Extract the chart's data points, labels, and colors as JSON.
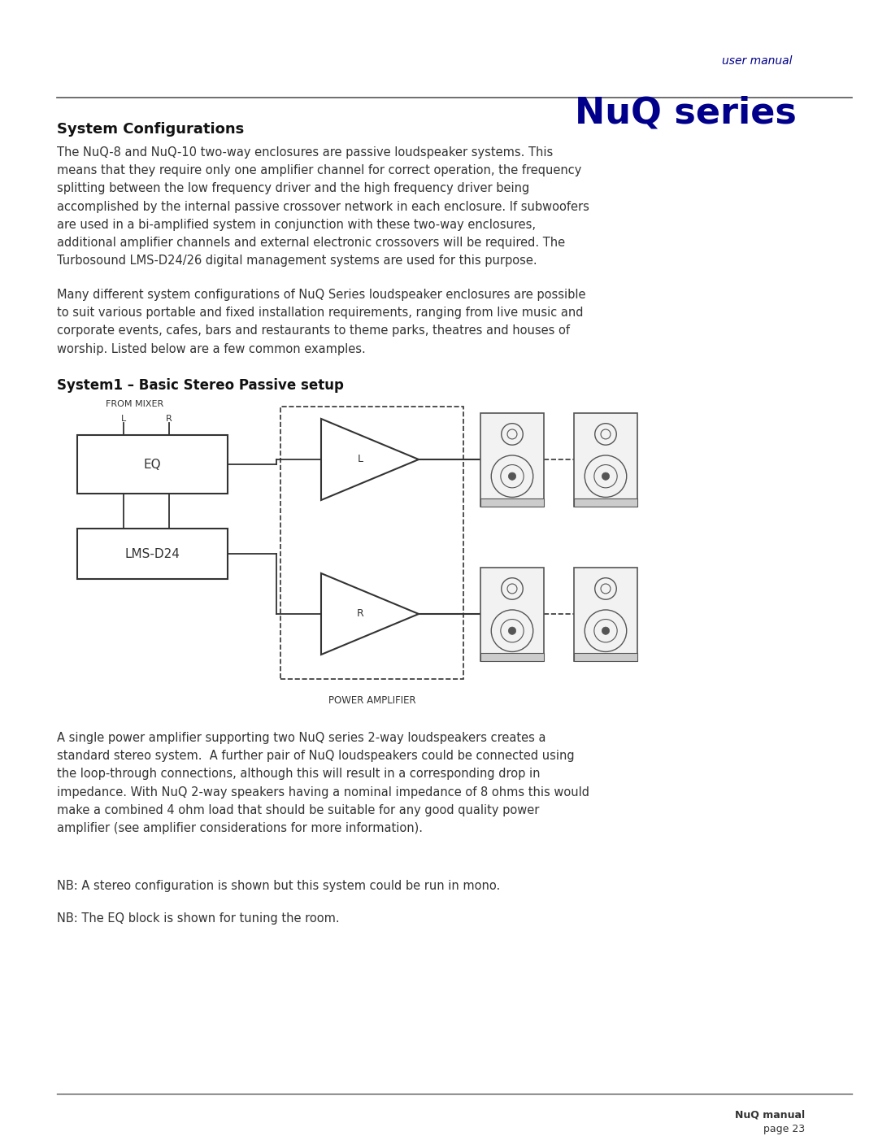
{
  "page_bg": "#ffffff",
  "brand_small": "user manual",
  "brand_large": "NuQ series",
  "brand_color": "#00008B",
  "section_title": "System Configurations",
  "para1": "The NuQ-8 and NuQ-10 two-way enclosures are passive loudspeaker systems. This\nmeans that they require only one amplifier channel for correct operation, the frequency\nsplitting between the low frequency driver and the high frequency driver being\naccomplished by the internal passive crossover network in each enclosure. If subwoofers\nare used in a bi-amplified system in conjunction with these two-way enclosures,\nadditional amplifier channels and external electronic crossovers will be required. The\nTurbosound LMS-D24/26 digital management systems are used for this purpose.",
  "para2": "Many different system configurations of NuQ Series loudspeaker enclosures are possible\nto suit various portable and fixed installation requirements, ranging from live music and\ncorporate events, cafes, bars and restaurants to theme parks, theatres and houses of\nworship. Listed below are a few common examples.",
  "subsection_title": "System1 – Basic Stereo Passive setup",
  "para3": "A single power amplifier supporting two NuQ series 2-way loudspeakers creates a\nstandard stereo system.  A further pair of NuQ loudspeakers could be connected using\nthe loop-through connections, although this will result in a corresponding drop in\nimpedance. With NuQ 2-way speakers having a nominal impedance of 8 ohms this would\nmake a combined 4 ohm load that should be suitable for any good quality power\namplifier (see amplifier considerations for more information).",
  "note1": "NB: A stereo configuration is shown but this system could be run in mono.",
  "note2": "NB: The EQ block is shown for tuning the room.",
  "footer_text_line1": "NuQ manual",
  "footer_text_line2": "page 23",
  "text_color": "#333333",
  "diagram_color": "#333333",
  "line_color": "#555555"
}
